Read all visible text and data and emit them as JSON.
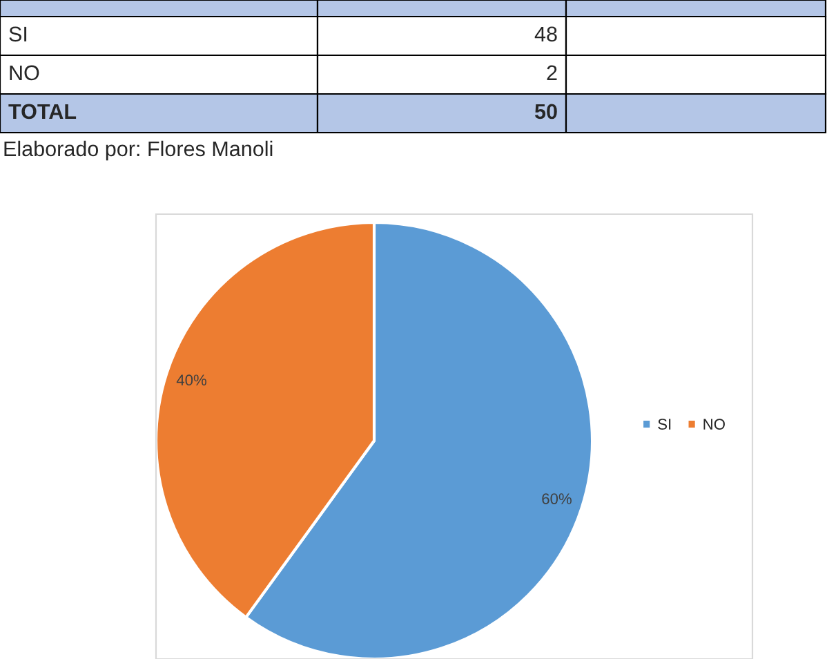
{
  "chart_data": [
    {
      "type": "other",
      "categories": [
        "SI",
        "NO",
        "TOTAL"
      ],
      "values": [
        48,
        2,
        50
      ],
      "data_labels": true,
      "annotations": [
        "Elaborado por: Flores Manoli"
      ]
    },
    {
      "type": "pie",
      "categories": [
        "SI",
        "NO"
      ],
      "values": [
        60,
        40
      ],
      "colors": [
        "#5b9bd5",
        "#ed7d31"
      ],
      "value_labels": [
        "60%",
        "40%"
      ],
      "legend": "right"
    }
  ]
}
